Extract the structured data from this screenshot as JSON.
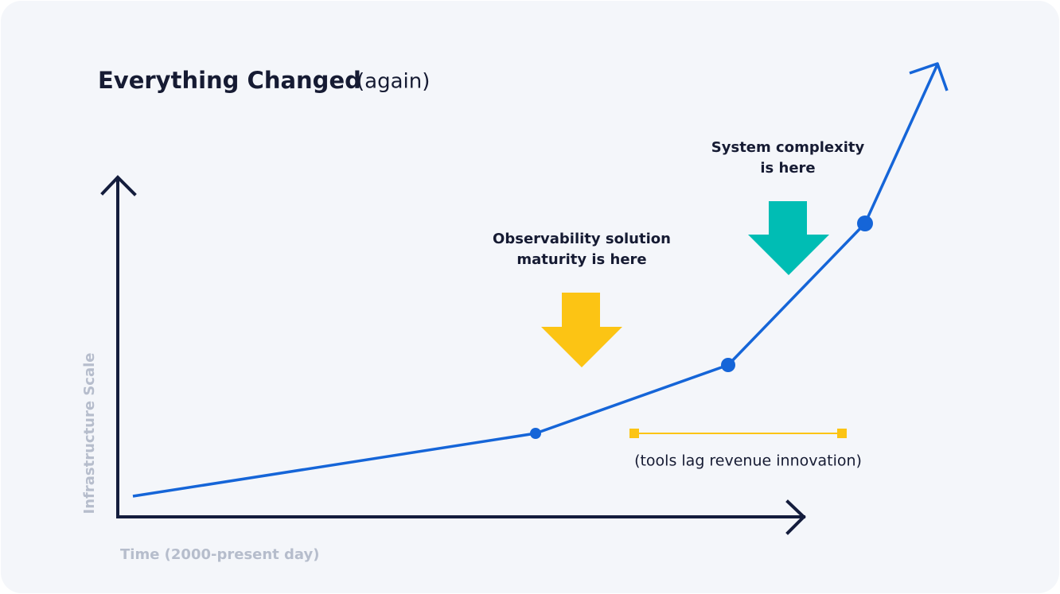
{
  "header": {
    "title": "Everything Changed",
    "subtitle": "(again)"
  },
  "axes": {
    "y_label": "Infrastructure Scale",
    "x_label": "Time (2000-present day)"
  },
  "annotations": {
    "observability": [
      "Observability solution",
      "maturity is here"
    ],
    "complexity": [
      "System complexity",
      "is here"
    ],
    "gap": "(tools lag revenue innovation)"
  }
}
